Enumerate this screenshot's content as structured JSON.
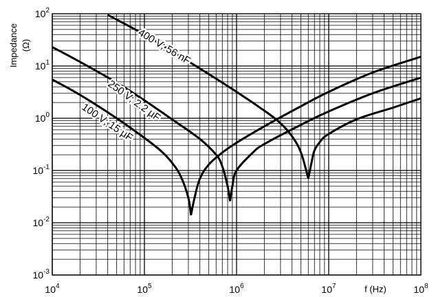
{
  "chart_data": {
    "type": "line",
    "x_scale": "log",
    "y_scale": "log",
    "xlim": [
      10000,
      100000000
    ],
    "ylim": [
      0.001,
      100
    ],
    "grid": true,
    "ylabel": "Impedance",
    "ylabel_unit": "(Ω)",
    "xlabel": "f (Hz)",
    "x_ticks": [
      {
        "value": 10000,
        "base": "10",
        "exp": "4"
      },
      {
        "value": 100000,
        "base": "10",
        "exp": "5"
      },
      {
        "value": 1000000,
        "base": "10",
        "exp": "6"
      },
      {
        "value": 10000000,
        "base": "10",
        "exp": "7"
      },
      {
        "value": 100000000,
        "base": "10",
        "exp": "8"
      }
    ],
    "y_ticks": [
      {
        "value": 100,
        "base": "10",
        "exp": "2"
      },
      {
        "value": 10,
        "base": "10",
        "exp": "1"
      },
      {
        "value": 1,
        "base": "10",
        "exp": "0"
      },
      {
        "value": 0.1,
        "base": "10",
        "exp": "-1"
      },
      {
        "value": 0.01,
        "base": "10",
        "exp": "-2"
      },
      {
        "value": 0.001,
        "base": "10",
        "exp": "-3"
      }
    ],
    "series": [
      {
        "name": "100 V; 15 µF",
        "x": [
          10000,
          20000,
          50000,
          100000,
          150000,
          200000,
          250000,
          300000,
          320000,
          350000,
          400000,
          500000,
          700000,
          1000000,
          2000000,
          5000000,
          10000000,
          30000000,
          100000000
        ],
        "y": [
          5.5,
          2.8,
          1.0,
          0.42,
          0.24,
          0.14,
          0.075,
          0.03,
          0.014,
          0.03,
          0.07,
          0.13,
          0.22,
          0.34,
          0.7,
          1.7,
          3.2,
          7.5,
          15
        ]
      },
      {
        "name": "250 V; 2.2 µF",
        "x": [
          10000,
          20000,
          50000,
          100000,
          200000,
          400000,
          600000,
          700000,
          800000,
          850000,
          900000,
          1000000,
          1500000,
          2000000,
          5000000,
          10000000,
          30000000,
          100000000
        ],
        "y": [
          23,
          12,
          4.8,
          2.2,
          0.95,
          0.4,
          0.2,
          0.12,
          0.05,
          0.026,
          0.05,
          0.1,
          0.22,
          0.32,
          0.75,
          1.35,
          3.0,
          6.0
        ]
      },
      {
        "name": "400 V; 56 nF",
        "x": [
          40000,
          100000,
          200000,
          500000,
          1000000,
          2000000,
          3000000,
          4000000,
          5000000,
          6000000,
          6500000,
          7000000,
          8000000,
          10000000,
          20000000,
          50000000,
          100000000
        ],
        "y": [
          95,
          40,
          19,
          7.0,
          3.2,
          1.4,
          0.8,
          0.45,
          0.22,
          0.07,
          0.14,
          0.24,
          0.35,
          0.5,
          0.95,
          1.6,
          2.4
        ]
      }
    ]
  }
}
